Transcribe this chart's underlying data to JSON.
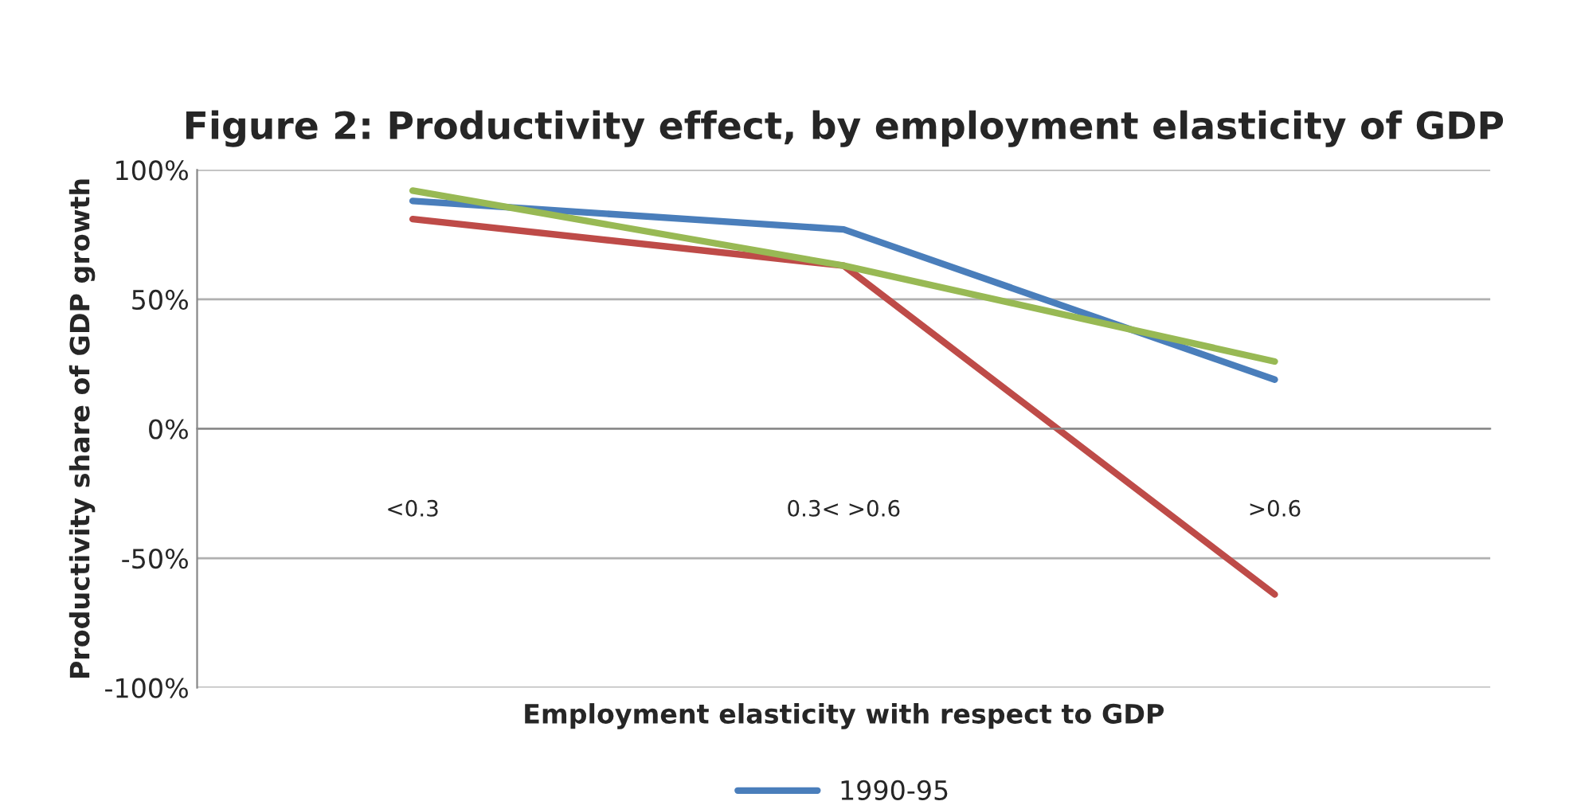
{
  "chart_data": {
    "type": "line",
    "title": "Figure 2: Productivity effect, by employment elasticity of GDP",
    "xlabel": "Employment elasticity with respect to GDP",
    "ylabel": "Productivity share of GDP growth",
    "categories": [
      "<0.3",
      "0.3< >0.6",
      ">0.6"
    ],
    "series": [
      {
        "name": "1990-95",
        "color": "#4a7ebb",
        "values": [
          88,
          77,
          19
        ]
      },
      {
        "color": "#be4b48",
        "values": [
          81,
          63,
          -64
        ]
      },
      {
        "color": "#98b954",
        "values": [
          92,
          63,
          26
        ]
      }
    ],
    "ylim": [
      -100,
      100
    ],
    "yticks": [
      {
        "value": -100,
        "label": "-100%"
      },
      {
        "value": -50,
        "label": "-50%"
      },
      {
        "value": 0,
        "label": "0%"
      },
      {
        "value": 50,
        "label": "50%"
      },
      {
        "value": 100,
        "label": "100%"
      }
    ],
    "grid": "y",
    "legend": "bottom",
    "marker": "none",
    "line_style": "solid"
  }
}
